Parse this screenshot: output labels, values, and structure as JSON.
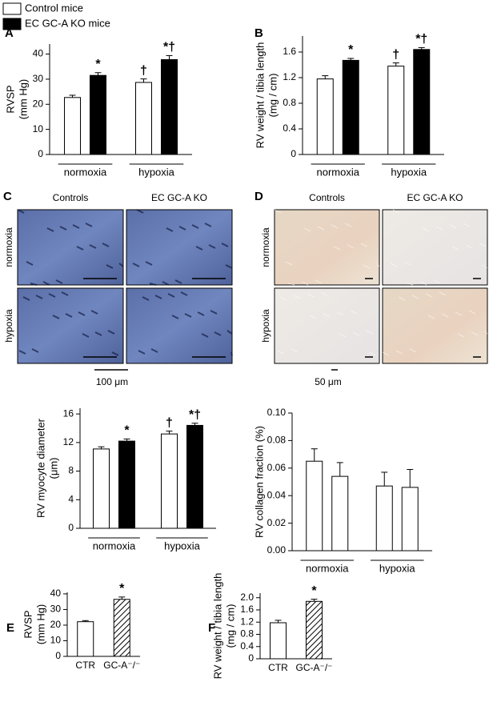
{
  "micrographs": [
    {
      "panel": "C",
      "columns": [
        "Controls",
        "EC GC-A KO"
      ],
      "rows": [
        "normoxia",
        "hypoxia"
      ],
      "scale": "100 μm"
    },
    {
      "panel": "D",
      "columns": [
        "Controls",
        "EC GC-A KO"
      ],
      "rows": [
        "normoxia",
        "hypoxia"
      ],
      "scale": "50 μm"
    }
  ],
  "chart_data": [
    {
      "type": "bar",
      "panel": "A",
      "ylabel": [
        "RVSP",
        "(mm Hg)"
      ],
      "categories": [
        "normoxia",
        "hypoxia"
      ],
      "series": [
        {
          "name": "Control mice",
          "color": "#ffffff",
          "values": [
            22.7,
            28.7
          ],
          "errors": [
            0.9,
            1.4
          ]
        },
        {
          "name": "EC GC-A KO mice",
          "color": "#000000",
          "values": [
            31.5,
            37.8
          ],
          "errors": [
            1.1,
            1.6
          ]
        }
      ],
      "annotations": [
        {
          "text": "*",
          "series": 1,
          "category": 0
        },
        {
          "text": "†",
          "series": 0,
          "category": 1
        },
        {
          "text": "*†",
          "series": 1,
          "category": 1
        }
      ],
      "ylim": [
        0,
        44
      ],
      "yticks": [
        0,
        10,
        20,
        30,
        40
      ]
    },
    {
      "type": "bar",
      "panel": "B",
      "ylabel": [
        "RV weight / tibia length",
        "(mg / cm)"
      ],
      "categories": [
        "normoxia",
        "hypoxia"
      ],
      "series": [
        {
          "name": "Control mice",
          "color": "#ffffff",
          "values": [
            1.18,
            1.38
          ],
          "errors": [
            0.05,
            0.05
          ]
        },
        {
          "name": "EC GC-A KO mice",
          "color": "#000000",
          "values": [
            1.47,
            1.64
          ],
          "errors": [
            0.03,
            0.03
          ]
        }
      ],
      "annotations": [
        {
          "text": "*",
          "series": 1,
          "category": 0
        },
        {
          "text": "†",
          "series": 0,
          "category": 1
        },
        {
          "text": "*†",
          "series": 1,
          "category": 1
        }
      ],
      "ylim": [
        0,
        1.85
      ],
      "yticks": [
        0,
        0.4,
        0.8,
        1.2,
        1.6
      ]
    },
    {
      "type": "bar",
      "ylabel": [
        "RV myocyte diameter",
        "(μm)"
      ],
      "categories": [
        "normoxia",
        "hypoxia"
      ],
      "series": [
        {
          "name": "Control mice",
          "color": "#ffffff",
          "values": [
            11.1,
            13.2
          ],
          "errors": [
            0.3,
            0.4
          ]
        },
        {
          "name": "EC GC-A KO mice",
          "color": "#000000",
          "values": [
            12.2,
            14.4
          ],
          "errors": [
            0.3,
            0.3
          ]
        }
      ],
      "annotations": [
        {
          "text": "*",
          "series": 1,
          "category": 0
        },
        {
          "text": "†",
          "series": 0,
          "category": 1
        },
        {
          "text": "*†",
          "series": 1,
          "category": 1
        }
      ],
      "ylim": [
        0,
        16.8
      ],
      "yticks": [
        0,
        4,
        8,
        12,
        16
      ]
    },
    {
      "type": "bar",
      "ylabel": [
        "RV collagen fraction (%)"
      ],
      "categories": [
        "normoxia",
        "hypoxia"
      ],
      "series": [
        {
          "name": "Control mice",
          "color": "#ffffff",
          "values": [
            0.065,
            0.047
          ],
          "errors": [
            0.009,
            0.01
          ]
        },
        {
          "name": "EC GC-A KO mice",
          "color": "#ffffff",
          "values": [
            0.054,
            0.046
          ],
          "errors": [
            0.01,
            0.013
          ]
        }
      ],
      "ylim": [
        0,
        0.1
      ],
      "yticks": [
        {
          "value": 0,
          "label": "0.00"
        },
        {
          "value": 0.02,
          "label": "0.02"
        },
        {
          "value": 0.04,
          "label": "0.04"
        },
        {
          "value": 0.06,
          "label": "0.06"
        },
        {
          "value": 0.08,
          "label": "0.08"
        },
        {
          "value": 0.1,
          "label": "0.10"
        }
      ]
    },
    {
      "type": "bar",
      "panel": "E",
      "ylabel": [
        "RVSP",
        "(mm Hg)"
      ],
      "categories": [
        "CTR",
        "GC-A⁻/⁻"
      ],
      "values": [
        22.2,
        36.5
      ],
      "errors": [
        0.7,
        1.5
      ],
      "colors": [
        "#ffffff",
        "#000000"
      ],
      "hatch": [
        false,
        true
      ],
      "annotations": [
        {
          "text": "*",
          "category": 1
        }
      ],
      "ylim": [
        0,
        41
      ],
      "yticks": [
        0,
        10,
        20,
        30,
        40
      ]
    },
    {
      "type": "bar",
      "panel": "F",
      "ylabel": [
        "RV weight / tibia length",
        "(mg / cm)"
      ],
      "categories": [
        "CTR",
        "GC-A⁻/⁻"
      ],
      "values": [
        1.18,
        1.88
      ],
      "errors": [
        0.08,
        0.07
      ],
      "colors": [
        "#ffffff",
        "#000000"
      ],
      "hatch": [
        false,
        true
      ],
      "annotations": [
        {
          "text": "*",
          "category": 1
        }
      ],
      "ylim": [
        0,
        2.15
      ],
      "yticks": [
        0,
        0.4,
        0.8,
        1.2,
        1.6,
        {
          "value": 2,
          "label": "2.0"
        }
      ]
    }
  ]
}
